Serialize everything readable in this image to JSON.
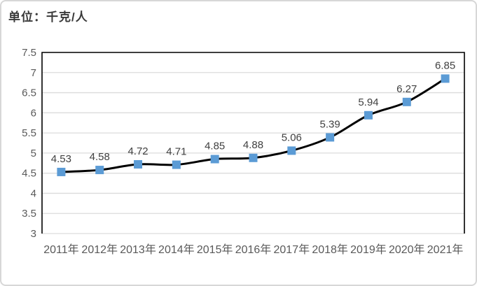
{
  "page": {
    "unit_label": "单位：千克/人"
  },
  "chart_data": {
    "type": "line",
    "title": "",
    "unit": "单位：千克/人",
    "categories": [
      "2011年",
      "2012年",
      "2013年",
      "2014年",
      "2015年",
      "2016年",
      "2017年",
      "2018年",
      "2019年",
      "2020年",
      "2021年"
    ],
    "values": [
      4.53,
      4.58,
      4.72,
      4.71,
      4.85,
      4.88,
      5.06,
      5.39,
      5.94,
      6.27,
      6.85
    ],
    "data_labels": [
      "4.53",
      "4.58",
      "4.72",
      "4.71",
      "4.85",
      "4.88",
      "5.06",
      "5.39",
      "5.94",
      "6.27",
      "6.85"
    ],
    "xlabel": "",
    "ylabel": "",
    "ylim": [
      3,
      7.5
    ],
    "ytick_step": 0.5,
    "yticks": [
      3,
      3.5,
      4,
      4.5,
      5,
      5.5,
      6,
      6.5,
      7,
      7.5
    ],
    "ytick_labels": [
      "3",
      "3.5",
      "4",
      "4.5",
      "5",
      "5.5",
      "6",
      "6.5",
      "7",
      "7.5"
    ],
    "grid": true,
    "legend": "none",
    "marker_shape": "square",
    "colors": {
      "line": "#000000",
      "marker": "#5B9BD5",
      "gridline": "#DCDCDC",
      "axis_text": "#595959",
      "data_label": "#404040",
      "plot_border": "#000000",
      "page_border": "#D7D7D7"
    }
  }
}
